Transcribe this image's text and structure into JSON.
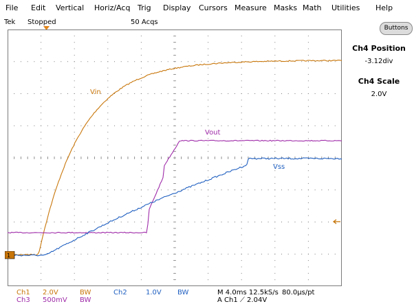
{
  "menu": [
    "File",
    "Edit",
    "Vertical",
    "Horiz/Acq",
    "Trig",
    "Display",
    "Cursors",
    "Measure",
    "Masks",
    "Math",
    "Utilities",
    "Help"
  ],
  "status": {
    "brand": "Tek",
    "run_state": "Stopped",
    "acqs": "50 Acqs"
  },
  "side_panel": {
    "button_label": "Buttons",
    "position_title": "Ch4 Position",
    "position_value": "-3.12div",
    "scale_title": "Ch4 Scale",
    "scale_value": "2.0V"
  },
  "trace_labels": {
    "vin": "Vin",
    "vout": "Vout",
    "vss": "Vss"
  },
  "bottom": {
    "ch1_name": "Ch1",
    "ch1_scale": "2.0V",
    "ch1_bw": "BW",
    "ch2_name": "Ch2",
    "ch2_scale": "1.0V",
    "ch2_bw": "BW",
    "ch3_name": "Ch3",
    "ch3_scale": "500mV",
    "ch3_bw": "BW",
    "timebase": "M 4.0ms 12.5kS/s",
    "record": "80.0µs/pt",
    "trigger": "A  Ch1  ⟋  2.04V"
  },
  "colors": {
    "ch1": "#c8760a",
    "ch2": "#1f5fc0",
    "ch3": "#9e2aa8",
    "grid": "#7a7a7a"
  }
}
